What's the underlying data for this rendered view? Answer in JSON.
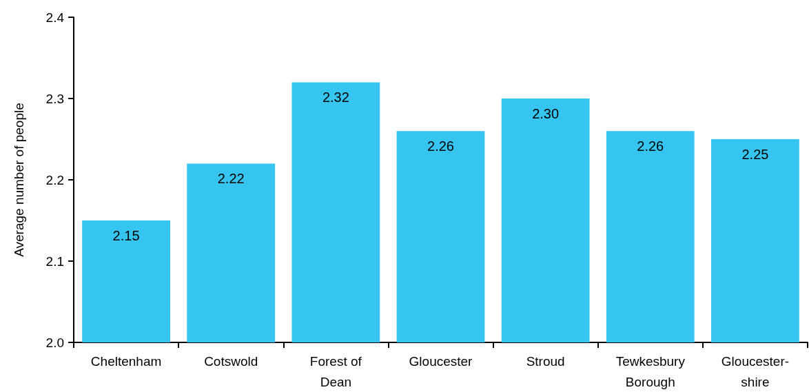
{
  "chart_data": {
    "type": "bar",
    "ylabel": "Average number of people",
    "categories": [
      "Cheltenham",
      "Cotswold",
      "Forest of Dean",
      "Gloucester",
      "Stroud",
      "Tewkesbury Borough",
      "Gloucester-shire"
    ],
    "values": [
      2.15,
      2.22,
      2.32,
      2.26,
      2.3,
      2.26,
      2.25
    ],
    "value_labels": [
      "2.15",
      "2.22",
      "2.32",
      "2.26",
      "2.30",
      "2.26",
      "2.25"
    ],
    "color": "#36c5f0",
    "ylim": [
      2.0,
      2.4
    ],
    "yticks": [
      {
        "value": 2.0,
        "label": "2.0"
      },
      2.1,
      2.2,
      2.3,
      2.4
    ],
    "grid": false
  }
}
